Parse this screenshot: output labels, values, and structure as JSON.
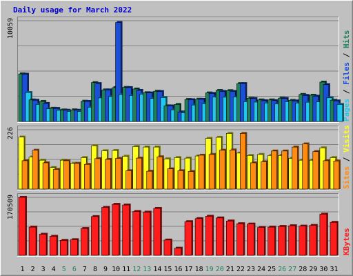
{
  "chart_data": {
    "type": "bar",
    "title": "Daily usage for March 2022",
    "colors": {
      "frame": "#c0c0c0",
      "plot_bg": "#c0c0c0",
      "title": "#0000cc",
      "hits": "#20805a",
      "files": "#1a4fd8",
      "pages": "#20c8f0",
      "visits": "#ffff20",
      "sites": "#ff8c10",
      "kbytes": "#ff1c1c",
      "weekend_tick": "#208060",
      "weekday_tick": "#000000"
    },
    "categories": [
      "1",
      "2",
      "3",
      "4",
      "5",
      "6",
      "7",
      "8",
      "9",
      "10",
      "11",
      "12",
      "13",
      "14",
      "15",
      "16",
      "17",
      "18",
      "19",
      "20",
      "21",
      "22",
      "23",
      "24",
      "25",
      "26",
      "27",
      "28",
      "29",
      "30",
      "31"
    ],
    "weekend_days": [
      "5",
      "6",
      "12",
      "13",
      "19",
      "20",
      "26",
      "27"
    ],
    "panels": [
      {
        "id": "top",
        "ymax_label": "10059",
        "ymax": 10059,
        "vertical_label": [
          {
            "text": "Pages",
            "color": "#20c8f0"
          },
          {
            "text": " / ",
            "color": "#000000"
          },
          {
            "text": "Files",
            "color": "#1a4fd8"
          },
          {
            "text": " / ",
            "color": "#000000"
          },
          {
            "text": "Hits",
            "color": "#20805a"
          }
        ],
        "series": [
          {
            "name": "Hits",
            "values": [
              4750,
              2150,
              2000,
              1320,
              1150,
              1160,
              2020,
              3880,
              3150,
              3380,
              3400,
              3240,
              2870,
              3020,
              1560,
              1700,
              2200,
              2220,
              2850,
              3100,
              3080,
              3780,
              2320,
              2150,
              2150,
              2330,
              2100,
              2700,
              2620,
              3930,
              2120
            ]
          },
          {
            "name": "Files",
            "values": [
              4720,
              2120,
              1800,
              1300,
              1120,
              1120,
              2000,
              3780,
              3150,
              9880,
              3380,
              3100,
              2850,
              2990,
              1550,
              950,
              2170,
              2210,
              2800,
              3000,
              3000,
              3780,
              2290,
              2070,
              2080,
              2300,
              2050,
              2600,
              2520,
              3680,
              2050
            ]
          },
          {
            "name": "Pages",
            "values": [
              2890,
              1700,
              1260,
              1110,
              1000,
              1000,
              1420,
              2350,
              2480,
              2690,
              2590,
              2720,
              2300,
              2390,
              1160,
              870,
              1640,
              1770,
              2430,
              2420,
              2430,
              1970,
              1930,
              1840,
              1740,
              1970,
              1840,
              1920,
              1950,
              2360,
              1700
            ]
          }
        ]
      },
      {
        "id": "middle",
        "ymax_label": "226",
        "ymax": 226,
        "vertical_label": [
          {
            "text": "Sites",
            "color": "#ff8c10"
          },
          {
            "text": " / ",
            "color": "#000000"
          },
          {
            "text": "Visits",
            "color": "#ffff20"
          }
        ],
        "series": [
          {
            "name": "Visits",
            "values": [
              198,
              122,
              110,
              82,
              110,
              98,
              120,
              165,
              146,
              147,
              125,
              162,
              160,
              160,
              115,
              120,
              118,
              126,
              193,
              197,
              212,
              137,
              128,
              132,
              128,
              128,
              117,
              110,
              110,
              157,
              120
            ]
          },
          {
            "name": "Sites",
            "values": [
              108,
              148,
              100,
              75,
              108,
              98,
              94,
              116,
              113,
              117,
              70,
              118,
              68,
              123,
              77,
              70,
              67,
              129,
              132,
              148,
              149,
              212,
              100,
              104,
              145,
              145,
              160,
              172,
              143,
              108,
              107
            ]
          }
        ]
      },
      {
        "id": "bottom",
        "ymax_label": "170509",
        "ymax": 170509,
        "vertical_label": [
          {
            "text": "KBytes",
            "color": "#ff1c1c"
          }
        ],
        "series": [
          {
            "name": "KBytes",
            "values": [
              170509,
              83000,
              62000,
              56000,
              44000,
              46000,
              79000,
              114000,
              141000,
              150000,
              148000,
              129000,
              127000,
              138000,
              45000,
              21000,
              99000,
              108000,
              115000,
              110000,
              101000,
              93000,
              92000,
              82000,
              83000,
              85000,
              87000,
              86000,
              88000,
              121000,
              97000
            ]
          }
        ]
      }
    ]
  }
}
